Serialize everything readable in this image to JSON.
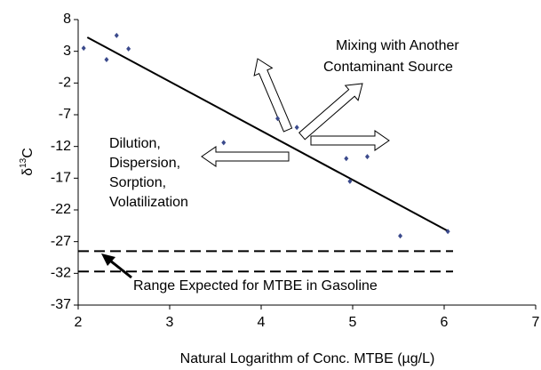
{
  "chart_data": {
    "type": "scatter",
    "x": [
      2.06,
      2.31,
      2.42,
      2.55,
      3.59,
      4.18,
      4.39,
      4.93,
      5.16,
      4.97,
      5.52,
      6.04
    ],
    "values": [
      3.5,
      1.7,
      5.5,
      3.4,
      -11.4,
      -7.6,
      -9.0,
      -13.9,
      -13.6,
      -17.5,
      -26.1,
      -25.4
    ],
    "color": "#3b4a8c",
    "trend_line": {
      "x": [
        2.1,
        6.05
      ],
      "y": [
        5.2,
        -25.4
      ],
      "color": "#000000"
    },
    "reference_lines": [
      -28.5,
      -31.7
    ],
    "xlim": [
      2,
      7
    ],
    "xticks": [
      2,
      3,
      4,
      5,
      6,
      7
    ],
    "ylim": [
      -37,
      8
    ],
    "yticks": [
      8,
      3,
      -2,
      -7,
      -12,
      -17,
      -22,
      -27,
      -32,
      -37
    ],
    "xlabel": "Natural Logarithm of Conc. MTBE (µg/L)",
    "ylabel_parts": [
      "δ",
      "13",
      "C"
    ],
    "annotations": {
      "mixing": [
        "Mixing with Another",
        "Contaminant Source"
      ],
      "dilution": [
        "Dilution,",
        "Dispersion,",
        "Sorption,",
        "Volatilization"
      ],
      "range": "Range Expected for MTBE in Gasoline"
    }
  }
}
